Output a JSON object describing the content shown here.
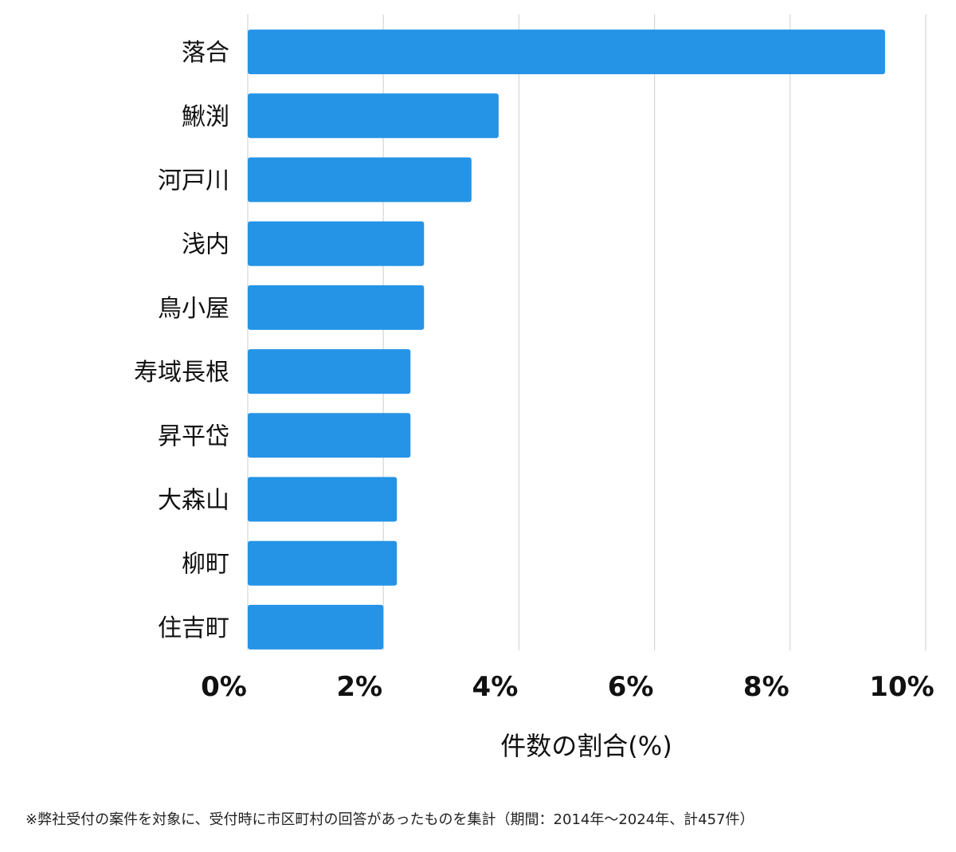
{
  "chart_data": {
    "type": "bar",
    "orientation": "horizontal",
    "title": "",
    "categories": [
      "落合",
      "鰍渕",
      "河戸川",
      "浅内",
      "鳥小屋",
      "寿域長根",
      "昇平岱",
      "大森山",
      "柳町",
      "住吉町"
    ],
    "values": [
      9.4,
      3.7,
      3.3,
      2.6,
      2.6,
      2.4,
      2.4,
      2.2,
      2.2,
      2.0
    ],
    "xlabel": "件数の割合(%)",
    "ylabel": "",
    "xlim": [
      0,
      10
    ],
    "xticks": [
      0,
      2,
      4,
      6,
      8,
      10
    ],
    "tick_labels": [
      "0%",
      "2%",
      "4%",
      "6%",
      "8%",
      "10%"
    ],
    "grid": true,
    "bar_color": "#2594e6",
    "grid_color": "#d6d6d6"
  },
  "footnote": "※弊社受付の案件を対象に、受付時に市区町村の回答があったものを集計（期間：2014年〜2024年、計457件）"
}
